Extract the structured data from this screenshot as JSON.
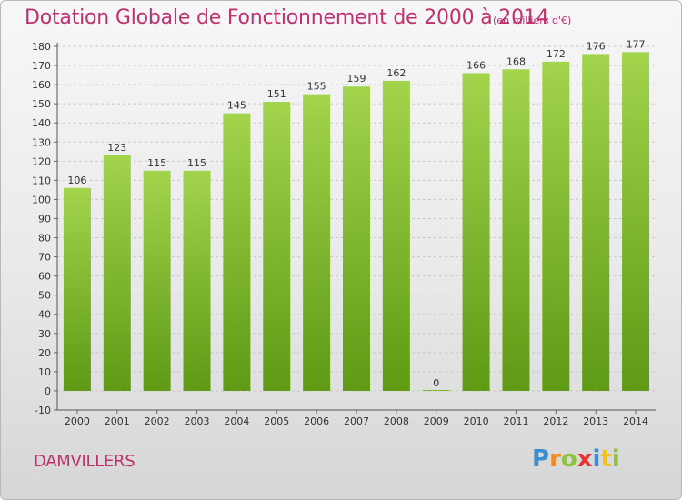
{
  "chart_data": {
    "type": "bar",
    "title": "Dotation Globale de Fonctionnement de 2000 à 2014",
    "subtitle": "(en milliers d'€)",
    "categories": [
      "2000",
      "2001",
      "2002",
      "2003",
      "2004",
      "2005",
      "2006",
      "2007",
      "2008",
      "2009",
      "2010",
      "2011",
      "2012",
      "2013",
      "2014"
    ],
    "values": [
      106,
      123,
      115,
      115,
      145,
      151,
      155,
      159,
      162,
      0,
      166,
      168,
      172,
      176,
      177
    ],
    "ylim": [
      -10,
      180
    ],
    "yticks": [
      -10,
      0,
      10,
      20,
      30,
      40,
      50,
      60,
      70,
      80,
      90,
      100,
      110,
      120,
      130,
      140,
      150,
      160,
      170,
      180
    ],
    "grid": true,
    "bar_color": "#7dbb2f",
    "title_color": "#c0306f"
  },
  "footer": {
    "commune": "DAMVILLERS",
    "logo": [
      {
        "ch": "P",
        "color": "#3a8fd0"
      },
      {
        "ch": "r",
        "color": "#f08a1e"
      },
      {
        "ch": "o",
        "color": "#8cc43c"
      },
      {
        "ch": "x",
        "color": "#e8342e"
      },
      {
        "ch": "i",
        "color": "#3a8fd0"
      },
      {
        "ch": "t",
        "color": "#f0c21e"
      },
      {
        "ch": "i",
        "color": "#8cc43c"
      }
    ]
  }
}
